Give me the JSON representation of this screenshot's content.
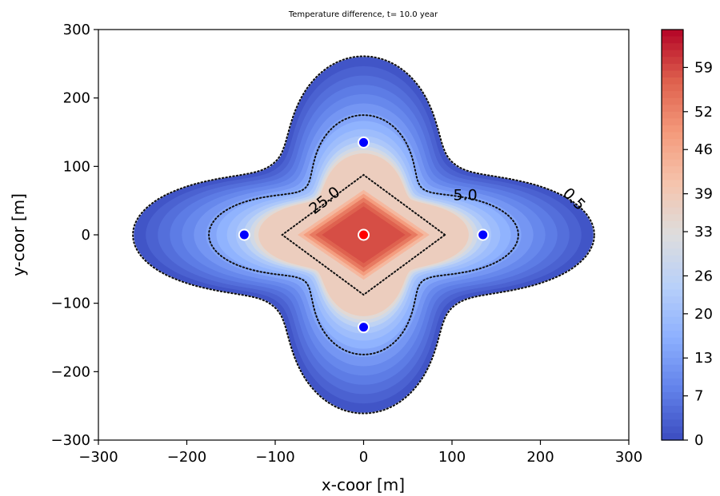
{
  "chart_data": {
    "type": "heatmap",
    "title": "Temperature difference, t= 10.0 year",
    "xlabel": "x-coor [m]",
    "ylabel": "y-coor [m]",
    "xlim": [
      -300,
      300
    ],
    "ylim": [
      -300,
      300
    ],
    "xticks": [
      -300,
      -200,
      -100,
      0,
      100,
      200,
      300
    ],
    "yticks": [
      -300,
      -200,
      -100,
      0,
      100,
      200,
      300
    ],
    "xtick_labels": [
      "−300",
      "−200",
      "−100",
      "0",
      "100",
      "200",
      "300"
    ],
    "ytick_labels": [
      "−300",
      "−200",
      "−100",
      "0",
      "100",
      "200",
      "300"
    ],
    "colorbar": {
      "colormap": "coolwarm",
      "min": 0,
      "max": 65,
      "ticks": [
        0,
        7,
        13,
        20,
        26,
        33,
        39,
        46,
        52,
        59
      ],
      "tick_labels": [
        "0",
        "7",
        "13",
        "20",
        "26",
        "33",
        "39",
        "46",
        "52",
        "59"
      ]
    },
    "wells": [
      {
        "x": 0,
        "y": 0,
        "color": "#ff0000",
        "role": "injection"
      },
      {
        "x": 0,
        "y": 135,
        "color": "#0000ff",
        "role": "production"
      },
      {
        "x": 0,
        "y": -135,
        "color": "#0000ff",
        "role": "production"
      },
      {
        "x": -135,
        "y": 0,
        "color": "#0000ff",
        "role": "production"
      },
      {
        "x": 135,
        "y": 0,
        "color": "#0000ff",
        "role": "production"
      }
    ],
    "contours": [
      {
        "level": 0.5,
        "label": "0.5",
        "label_pos": [
          238,
          52
        ]
      },
      {
        "level": 5.0,
        "label": "5.0",
        "label_pos": [
          115,
          58
        ]
      },
      {
        "level": 25.0,
        "label": "25.0",
        "label_pos": [
          -44,
          50
        ]
      }
    ]
  }
}
